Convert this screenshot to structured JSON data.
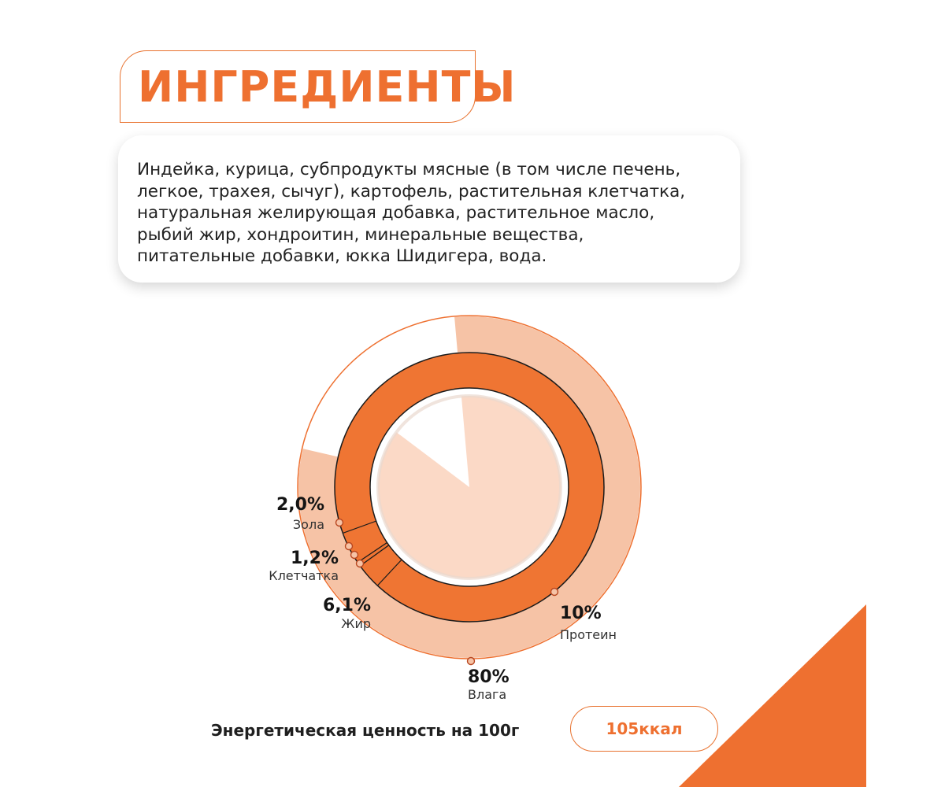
{
  "header": {
    "title": "ИНГРЕДИЕНТЫ"
  },
  "ingredients": {
    "text": "Индейка, курица, субпродукты мясные (в том числе печень,\nлегкое, трахея, сычуг), картофель, растительная клетчатка,\nнатуральная желирующая добавка, растительное масло,\nрыбий жир, хондроитин, минеральные вещества,\nпитательные добавки, юкка Шидигера, вода."
  },
  "chart_data": {
    "type": "pie",
    "series": [
      {
        "label": "Влага",
        "value": 80,
        "value_text": "80%"
      },
      {
        "label": "Протеин",
        "value": 10,
        "value_text": "10%"
      },
      {
        "label": "Жир",
        "value": 6.1,
        "value_text": "6,1%"
      },
      {
        "label": "Клетчатка",
        "value": 1.2,
        "value_text": "1,2%"
      },
      {
        "label": "Зола",
        "value": 2.0,
        "value_text": "2,0%"
      }
    ]
  },
  "energy": {
    "label": "Энергетическая ценность на 100г",
    "value": "105ккал"
  },
  "colors": {
    "accent": "#ee7030",
    "ring_light": "#f6c3a6",
    "center_light": "#fbd9c6",
    "ring_dark": "#ef7533"
  }
}
